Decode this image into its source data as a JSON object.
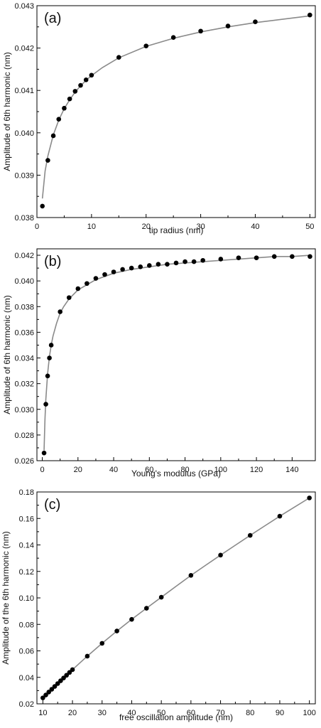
{
  "chart_data": [
    {
      "type": "scatter",
      "panel_label": "(a)",
      "xlabel": "tip radius (nm)",
      "ylabel": "Amplitude of 6th harmonic (nm)",
      "xlim": [
        0,
        51
      ],
      "ylim": [
        0.038,
        0.043
      ],
      "xticks": [
        0,
        10,
        20,
        30,
        40,
        50
      ],
      "yticks": [
        0.038,
        0.039,
        0.04,
        0.041,
        0.042,
        0.043
      ],
      "xtick_labels": [
        "0",
        "10",
        "20",
        "30",
        "40",
        "50"
      ],
      "ytick_labels": [
        "0.038",
        "0.039",
        "0.040",
        "0.041",
        "0.042",
        "0.043"
      ],
      "grid": false,
      "series": [
        {
          "x": [
            1,
            2,
            3,
            4,
            5,
            6,
            7,
            8,
            9,
            10,
            15,
            20,
            25,
            30,
            35,
            40,
            50
          ],
          "y": [
            0.03827,
            0.03935,
            0.03993,
            0.04032,
            0.04058,
            0.0408,
            0.04098,
            0.04112,
            0.04125,
            0.04136,
            0.04178,
            0.04205,
            0.04225,
            0.0424,
            0.04252,
            0.04262,
            0.04278
          ]
        }
      ],
      "fit": {
        "x": [
          1,
          1.5,
          2,
          3,
          4,
          5,
          6,
          7,
          8,
          9,
          10,
          12,
          15,
          20,
          25,
          30,
          35,
          40,
          45,
          50
        ],
        "y": [
          0.03845,
          0.0391,
          0.03945,
          0.03995,
          0.0403,
          0.04057,
          0.04078,
          0.04096,
          0.04111,
          0.04124,
          0.04135,
          0.04154,
          0.04177,
          0.04204,
          0.04223,
          0.04238,
          0.0425,
          0.0426,
          0.04268,
          0.04276
        ]
      }
    },
    {
      "type": "scatter",
      "panel_label": "(b)",
      "xlabel": "Young's modulus (GPa)",
      "ylabel": "Amplitude of 6th harmonic (nm)",
      "xlim": [
        -3,
        153
      ],
      "ylim": [
        0.026,
        0.0425
      ],
      "xticks": [
        0,
        20,
        40,
        60,
        80,
        100,
        120,
        140
      ],
      "yticks": [
        0.026,
        0.028,
        0.03,
        0.032,
        0.034,
        0.036,
        0.038,
        0.04,
        0.042
      ],
      "xtick_labels": [
        "0",
        "20",
        "40",
        "60",
        "80",
        "100",
        "120",
        "140"
      ],
      "ytick_labels": [
        "0.026",
        "0.028",
        "0.030",
        "0.032",
        "0.034",
        "0.036",
        "0.038",
        "0.040",
        "0.042"
      ],
      "grid": false,
      "series": [
        {
          "x": [
            1,
            2,
            3,
            4,
            5,
            10,
            15,
            20,
            25,
            30,
            35,
            40,
            45,
            50,
            55,
            60,
            65,
            70,
            75,
            80,
            85,
            90,
            100,
            110,
            120,
            130,
            140,
            150
          ],
          "y": [
            0.0266,
            0.0304,
            0.0326,
            0.034,
            0.035,
            0.0376,
            0.0387,
            0.0394,
            0.0398,
            0.0402,
            0.0405,
            0.0407,
            0.0409,
            0.041,
            0.0411,
            0.0412,
            0.0413,
            0.0413,
            0.0414,
            0.0415,
            0.0415,
            0.0416,
            0.0417,
            0.0418,
            0.0418,
            0.0419,
            0.0419,
            0.0419
          ]
        }
      ],
      "fit": {
        "x": [
          1,
          1.5,
          2,
          3,
          4,
          5,
          6,
          8,
          10,
          12,
          15,
          20,
          25,
          30,
          40,
          50,
          60,
          70,
          80,
          90,
          100,
          110,
          120,
          130,
          140,
          150
        ],
        "y": [
          0.0268,
          0.0292,
          0.0308,
          0.0328,
          0.0341,
          0.035,
          0.0357,
          0.0367,
          0.0375,
          0.038,
          0.0386,
          0.0393,
          0.0397,
          0.0401,
          0.0406,
          0.0409,
          0.0411,
          0.0413,
          0.0414,
          0.0415,
          0.0416,
          0.0417,
          0.0418,
          0.0419,
          0.0419,
          0.042
        ]
      }
    },
    {
      "type": "scatter",
      "panel_label": "(c)",
      "xlabel": "free oscillation amplitude (nm)",
      "ylabel": "Amplitude of the 6th harmonic (nm)",
      "xlim": [
        8,
        102
      ],
      "ylim": [
        0.02,
        0.18
      ],
      "xticks": [
        10,
        20,
        30,
        40,
        50,
        60,
        70,
        80,
        90,
        100
      ],
      "yticks": [
        0.02,
        0.04,
        0.06,
        0.08,
        0.1,
        0.12,
        0.14,
        0.16,
        0.18
      ],
      "xtick_labels": [
        "10",
        "20",
        "30",
        "40",
        "50",
        "60",
        "70",
        "80",
        "90",
        "100"
      ],
      "ytick_labels": [
        "0.02",
        "0.04",
        "0.06",
        "0.08",
        "0.10",
        "0.12",
        "0.14",
        "0.16",
        "0.18"
      ],
      "grid": false,
      "series": [
        {
          "x": [
            10,
            11,
            12,
            13,
            14,
            15,
            16,
            17,
            18,
            19,
            20,
            25,
            30,
            35,
            40,
            45,
            50,
            60,
            70,
            80,
            90,
            100
          ],
          "y": [
            0.0245,
            0.0267,
            0.0289,
            0.031,
            0.0331,
            0.0353,
            0.0374,
            0.0395,
            0.0416,
            0.0437,
            0.0458,
            0.056,
            0.0657,
            0.075,
            0.0838,
            0.0922,
            0.1005,
            0.117,
            0.1323,
            0.1472,
            0.1617,
            0.1755
          ]
        }
      ],
      "fit": {
        "x": [
          10,
          15,
          20,
          25,
          30,
          35,
          40,
          45,
          50,
          55,
          60,
          65,
          70,
          75,
          80,
          85,
          90,
          95,
          100
        ],
        "y": [
          0.0245,
          0.0353,
          0.0458,
          0.056,
          0.0657,
          0.075,
          0.0838,
          0.0922,
          0.1005,
          0.1088,
          0.117,
          0.1247,
          0.1323,
          0.1398,
          0.1472,
          0.1545,
          0.1617,
          0.1686,
          0.1755
        ]
      }
    }
  ]
}
